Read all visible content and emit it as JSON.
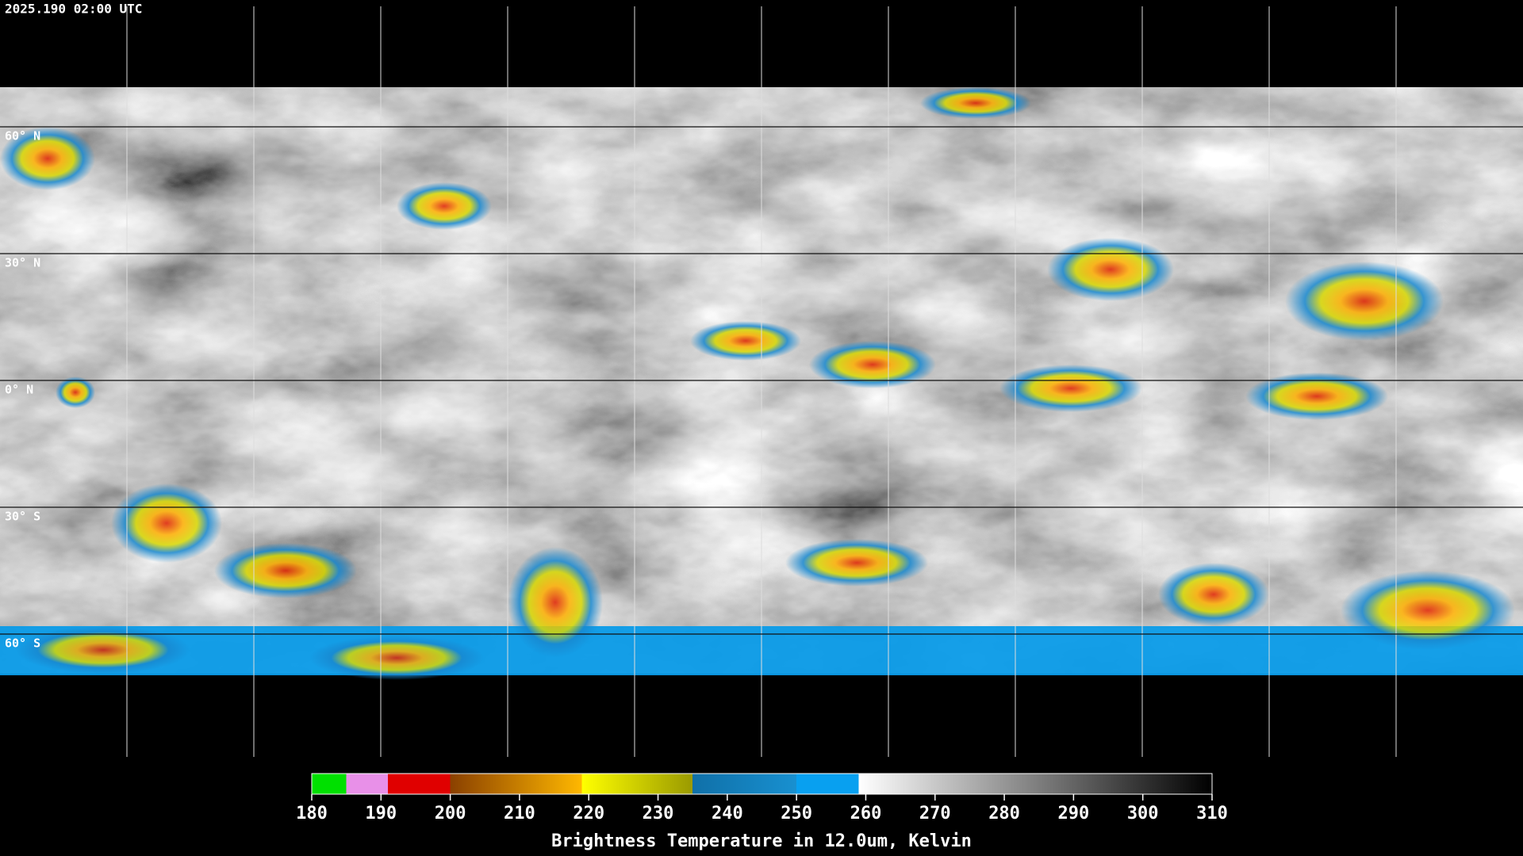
{
  "header": {
    "timestamp": "2025.190 02:00 UTC"
  },
  "map": {
    "latitudes": [
      {
        "value": 60,
        "label": "60° N"
      },
      {
        "value": 30,
        "label": "30° N"
      },
      {
        "value": 0,
        "label": "0° N"
      },
      {
        "value": -30,
        "label": "30° S"
      },
      {
        "value": -60,
        "label": "60° S"
      }
    ]
  },
  "colorbar": {
    "label": "Brightness Temperature in 12.0um, Kelvin",
    "range": [
      180,
      310
    ],
    "ticks": [
      180,
      190,
      200,
      210,
      220,
      230,
      240,
      250,
      260,
      270,
      280,
      290,
      300,
      310
    ],
    "stops": [
      {
        "value": 180,
        "color": "#00e000"
      },
      {
        "value": 185,
        "color": "#00e000"
      },
      {
        "value": 185,
        "color": "#e890e8"
      },
      {
        "value": 191,
        "color": "#e890e8"
      },
      {
        "value": 191,
        "color": "#e00000"
      },
      {
        "value": 200,
        "color": "#e00000"
      },
      {
        "value": 200,
        "color": "#8a4000"
      },
      {
        "value": 219,
        "color": "#ffb800"
      },
      {
        "value": 219,
        "color": "#ffff00"
      },
      {
        "value": 235,
        "color": "#9a9a00"
      },
      {
        "value": 235,
        "color": "#1070a8"
      },
      {
        "value": 250,
        "color": "#1890d0"
      },
      {
        "value": 250,
        "color": "#08a0f0"
      },
      {
        "value": 259,
        "color": "#08a0f0"
      },
      {
        "value": 259,
        "color": "#ffffff"
      },
      {
        "value": 310,
        "color": "#000000"
      }
    ]
  }
}
